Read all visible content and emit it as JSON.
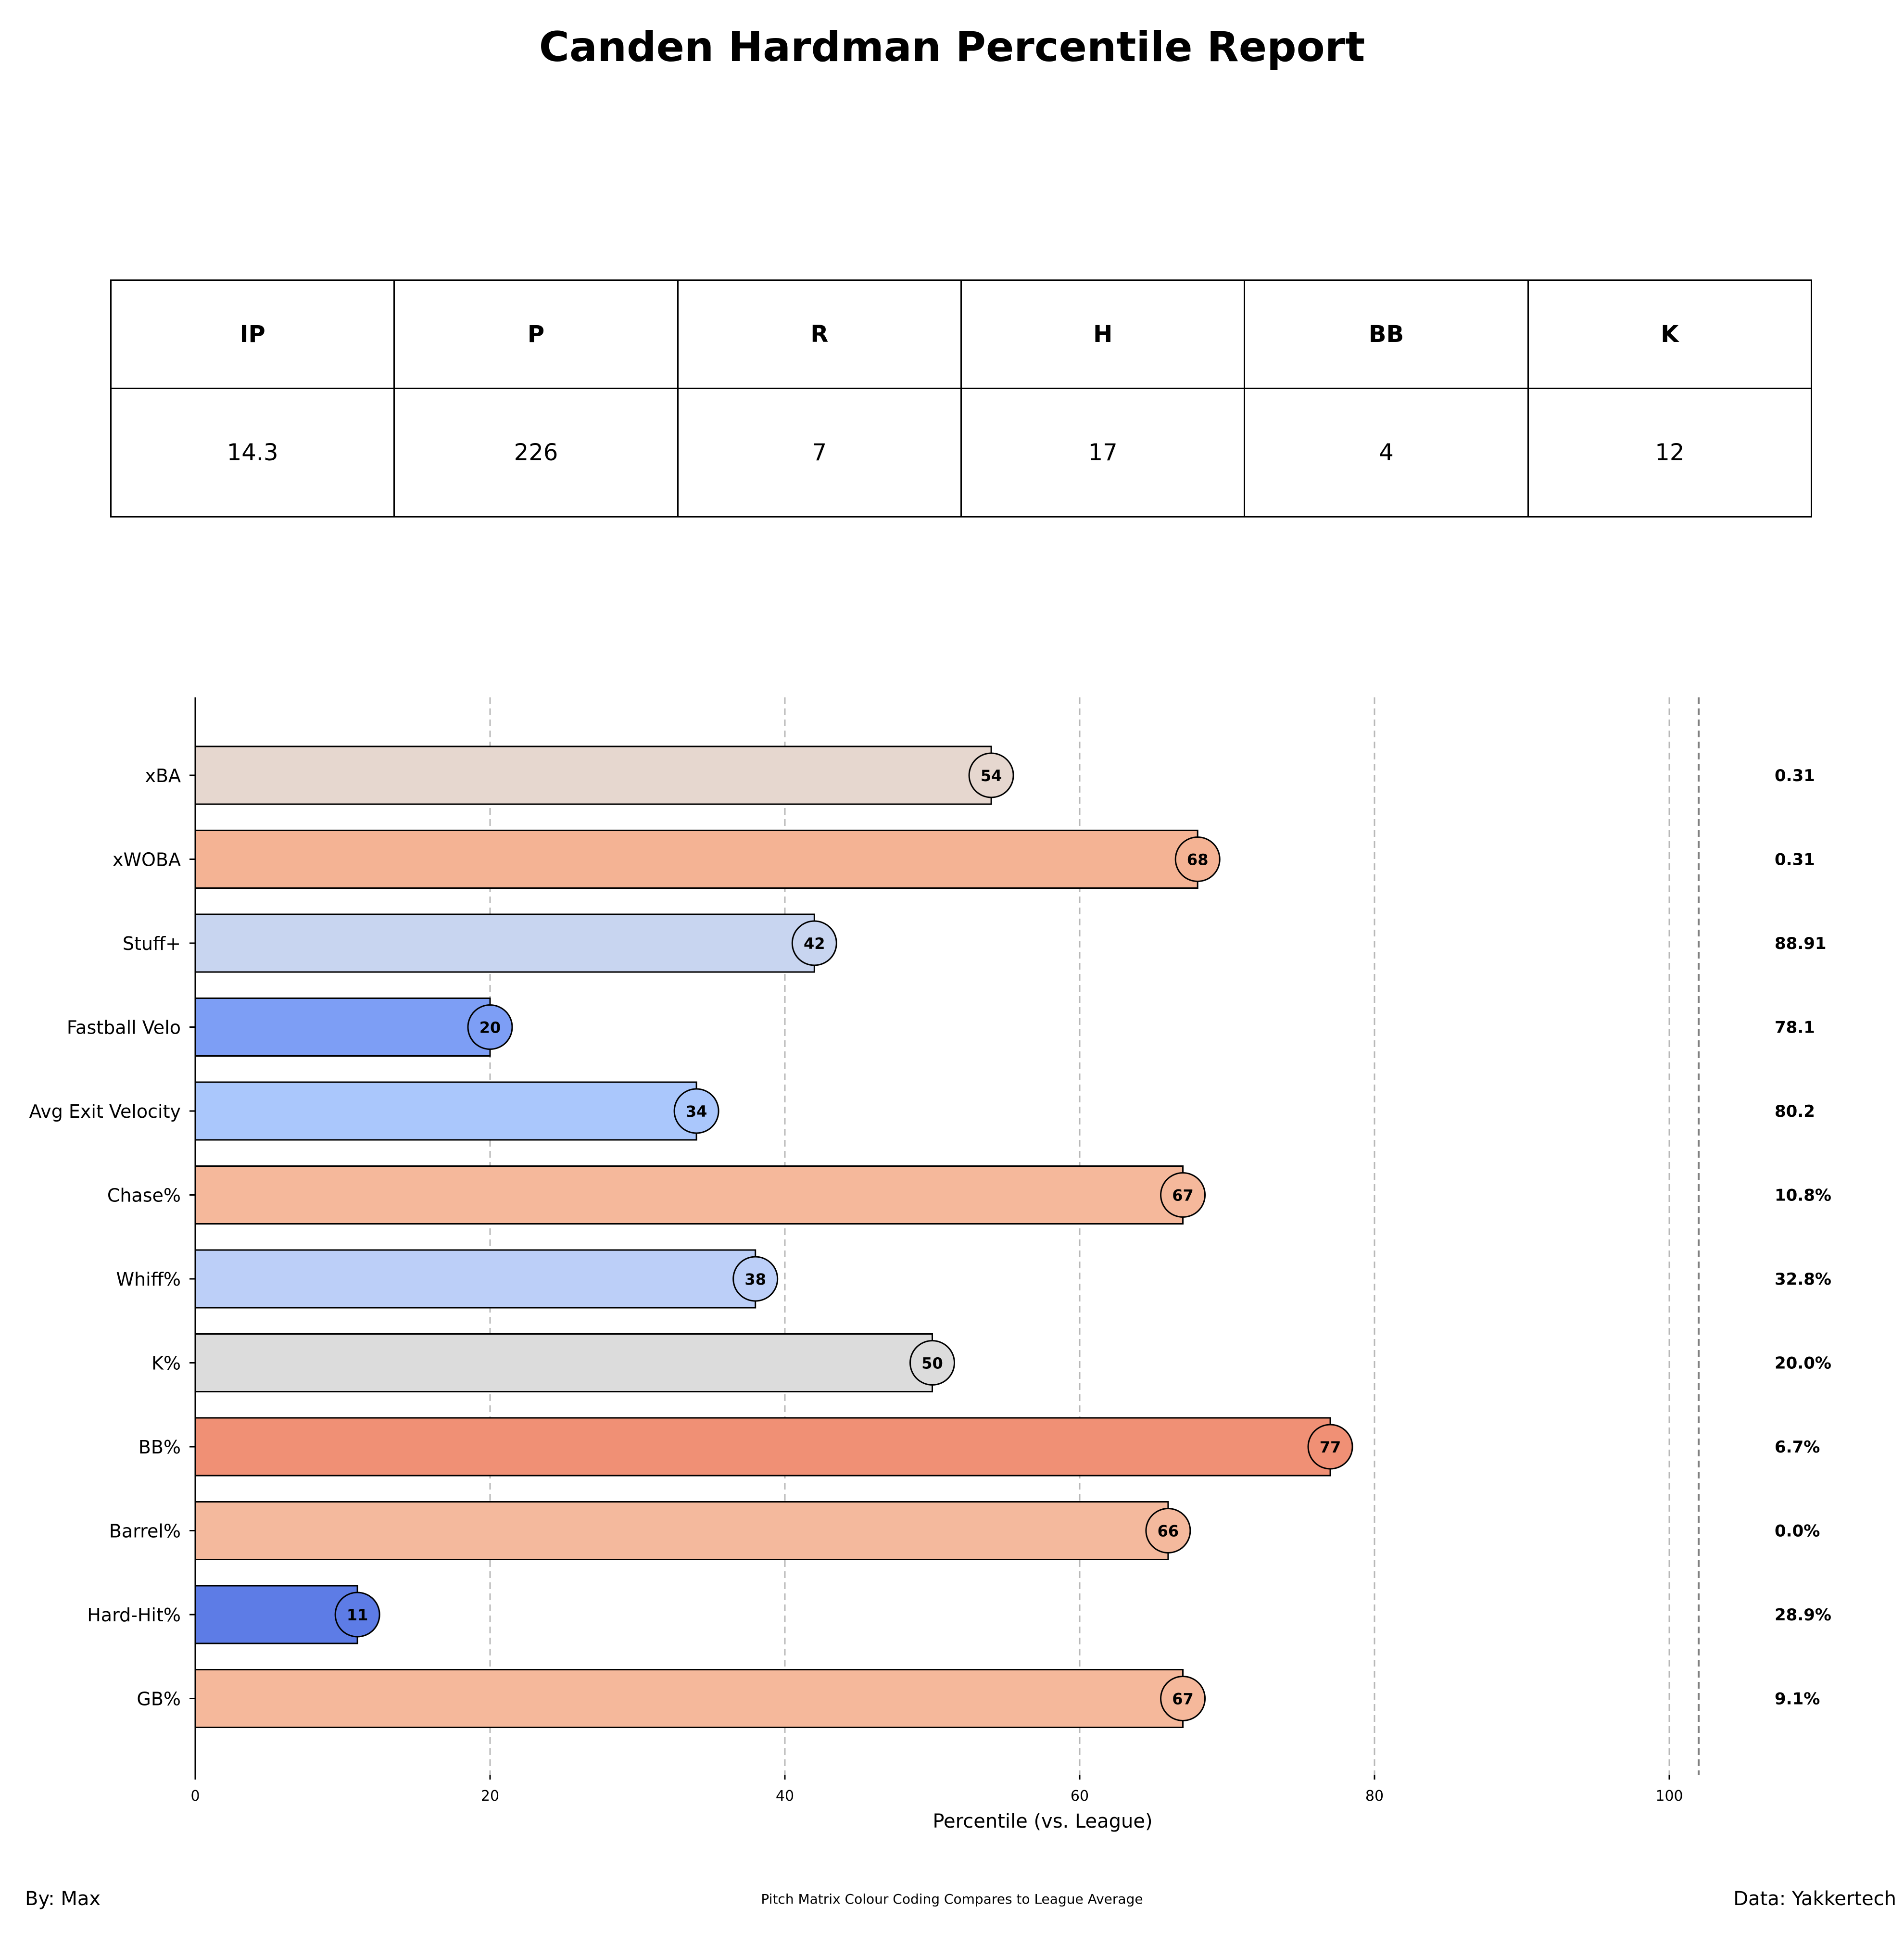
{
  "title": "Canden Hardman Percentile Report",
  "stats_table": {
    "headers": [
      "IP",
      "P",
      "R",
      "H",
      "BB",
      "K"
    ],
    "values": [
      "14.3",
      "226",
      "7",
      "17",
      "4",
      "12"
    ]
  },
  "chart_data": {
    "type": "bar",
    "orientation": "horizontal",
    "xlabel": "Percentile (vs. League)",
    "xlim": [
      0,
      102
    ],
    "xticks": [
      0,
      20,
      40,
      60,
      80,
      100
    ],
    "grid": "vertical dashed",
    "categories": [
      "xBA",
      "xWOBA",
      "Stuff+",
      "Fastball Velo",
      "Avg Exit Velocity",
      "Chase%",
      "Whiff%",
      "K%",
      "BB%",
      "Barrel%",
      "Hard-Hit%",
      "GB%"
    ],
    "values": [
      54,
      68,
      42,
      20,
      34,
      67,
      38,
      50,
      77,
      66,
      11,
      67
    ],
    "raw_values": [
      "0.31",
      "0.31",
      "88.91",
      "78.1",
      "80.2",
      "10.8%",
      "32.8%",
      "20.0%",
      "6.7%",
      "0.0%",
      "28.9%",
      "9.1%"
    ],
    "colors": [
      "#e6d7cf",
      "#f4b394",
      "#c8d5f0",
      "#7d9ef5",
      "#aac7fc",
      "#f5b89b",
      "#bccff8",
      "#dcdcdc",
      "#f09075",
      "#f4b99d",
      "#5d7ce6",
      "#f5b89b"
    ]
  },
  "footer": {
    "left": "By: Max",
    "center": "Pitch Matrix Colour Coding Compares to League Average",
    "right": "Data: Yakkertech"
  }
}
